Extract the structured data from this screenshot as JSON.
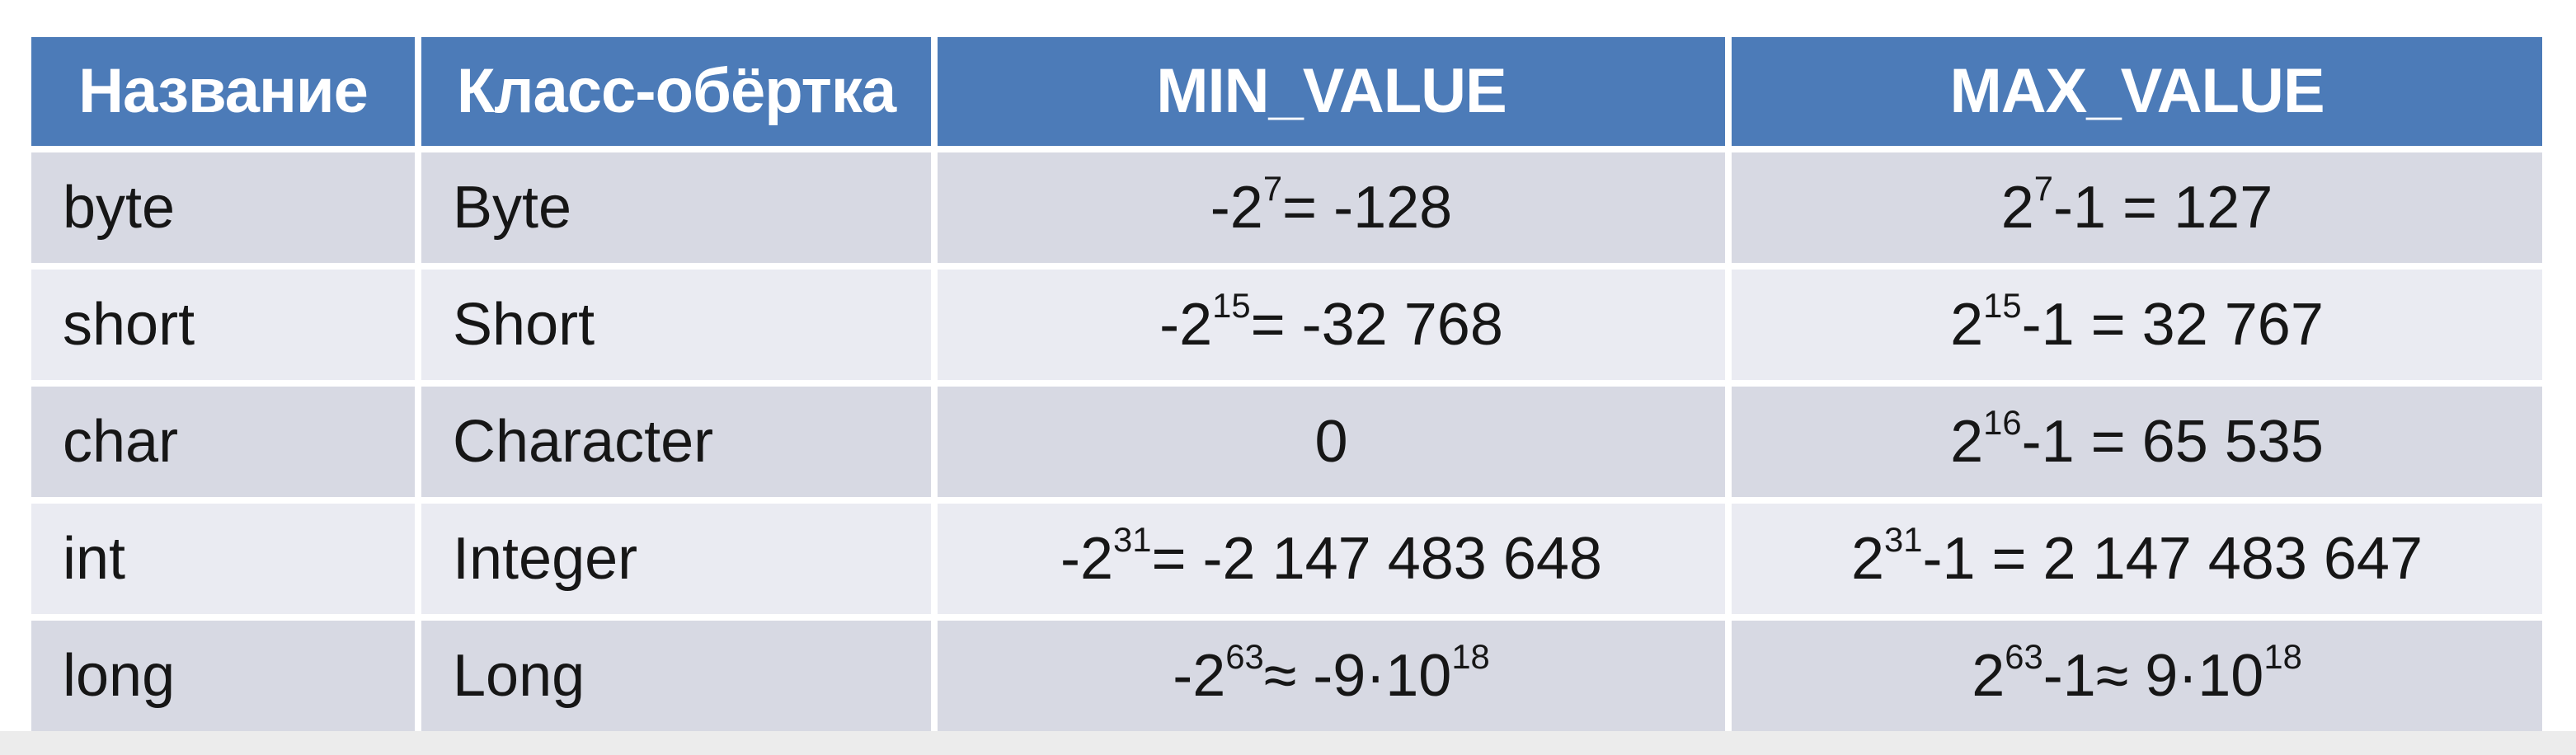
{
  "theme": {
    "header_bg": "#4c7bb8",
    "header_text": "#ffffff",
    "row_odd_bg": "#d7d9e3",
    "row_even_bg": "#eaebf2",
    "cell_text": "#161616",
    "divider": "#fdfdfa",
    "bottom_strip": "#ececec"
  },
  "table": {
    "columns": [
      "Название",
      "Класс-обёртка",
      "MIN_VALUE",
      "MAX_VALUE"
    ],
    "rows": [
      {
        "name": "byte",
        "wrapper": "Byte",
        "min": [
          {
            "t": "-2"
          },
          {
            "t": "7",
            "sup": true
          },
          {
            "t": " = -128"
          }
        ],
        "max": [
          {
            "t": "2"
          },
          {
            "t": "7",
            "sup": true
          },
          {
            "t": "-1 = 127"
          }
        ]
      },
      {
        "name": "short",
        "wrapper": "Short",
        "min": [
          {
            "t": "-2"
          },
          {
            "t": "15",
            "sup": true
          },
          {
            "t": " = -32 768"
          }
        ],
        "max": [
          {
            "t": "2"
          },
          {
            "t": "15",
            "sup": true
          },
          {
            "t": "-1 = 32 767"
          }
        ]
      },
      {
        "name": "char",
        "wrapper": "Character",
        "min": [
          {
            "t": "0"
          }
        ],
        "max": [
          {
            "t": "2"
          },
          {
            "t": "16",
            "sup": true
          },
          {
            "t": "-1 = 65 535"
          }
        ]
      },
      {
        "name": "int",
        "wrapper": "Integer",
        "min": [
          {
            "t": "-2"
          },
          {
            "t": "31",
            "sup": true
          },
          {
            "t": " = -2 147 483 648"
          }
        ],
        "max": [
          {
            "t": "2"
          },
          {
            "t": "31",
            "sup": true
          },
          {
            "t": "-1 = 2 147 483 647"
          }
        ]
      },
      {
        "name": "long",
        "wrapper": "Long",
        "min": [
          {
            "t": "-2"
          },
          {
            "t": "63",
            "sup": true
          },
          {
            "t": " ≈ -9·10"
          },
          {
            "t": "18",
            "sup": true
          }
        ],
        "max": [
          {
            "t": "2"
          },
          {
            "t": "63",
            "sup": true
          },
          {
            "t": "-1≈ 9·10"
          },
          {
            "t": "18",
            "sup": true
          }
        ]
      }
    ]
  }
}
